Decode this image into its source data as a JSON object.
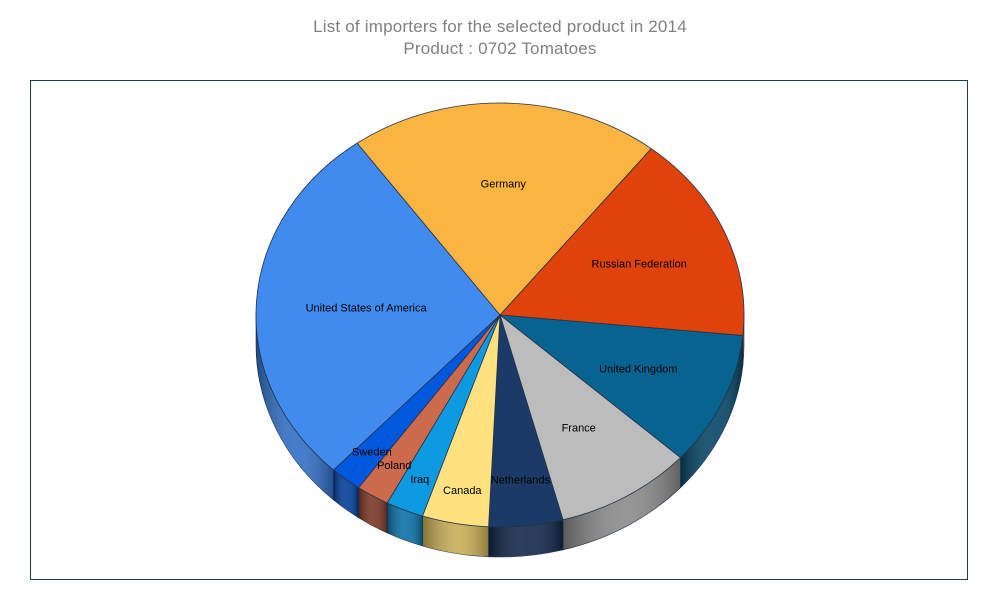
{
  "title": "List of importers for the selected product in 2014",
  "subtitle": "Product : 0702 Tomatoes",
  "chart_data": {
    "type": "pie",
    "title": "List of importers for the selected product in 2014",
    "subtitle": "Product : 0702 Tomatoes",
    "legend": "none",
    "slices": [
      {
        "label": "United States of America",
        "value": 28.1,
        "color": "#418BEE",
        "side_color": "#2F6FC7"
      },
      {
        "label": "Germany",
        "value": 20.6,
        "color": "#F9B442",
        "side_color": "#A7702A"
      },
      {
        "label": "Russian Federation",
        "value": 15.9,
        "color": "#E0420B",
        "side_color": "#9E2C06"
      },
      {
        "label": "United Kingdom",
        "value": 10.2,
        "color": "#076390",
        "side_color": "#044566"
      },
      {
        "label": "France",
        "value": 9.1,
        "color": "#BCBCBC",
        "side_color": "#8A8A8A"
      },
      {
        "label": "Netherlands",
        "value": 4.9,
        "color": "#1B3A67",
        "side_color": "#10264A"
      },
      {
        "label": "Canada",
        "value": 4.4,
        "color": "#FFE17F",
        "side_color": "#C9AE55"
      },
      {
        "label": "Iraq",
        "value": 2.5,
        "color": "#0E9AE1",
        "side_color": "#0870A6"
      },
      {
        "label": "Poland",
        "value": 2.2,
        "color": "#CB6A4D",
        "side_color": "#7A3522"
      },
      {
        "label": "Sweden",
        "value": 2.1,
        "color": "#0058DD",
        "side_color": "#003D9A"
      }
    ]
  }
}
